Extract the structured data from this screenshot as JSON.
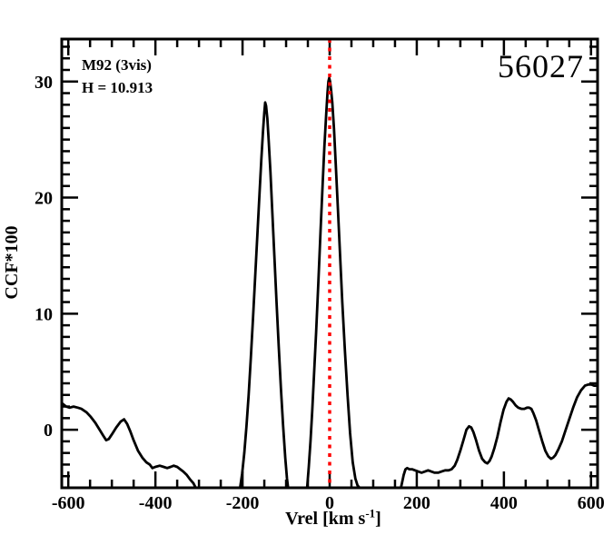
{
  "annotations": {
    "cluster": "M92 (3vis)",
    "magnitude": "H = 10.913",
    "star_id": "56027"
  },
  "colors": {
    "background": "#ffffff",
    "frame": "#000000",
    "curve": "#000000",
    "ref_line": "#ff0000"
  },
  "chart_data": {
    "type": "line",
    "title": "",
    "xlabel": "Vrel [km s-1]",
    "xlabel_parts": {
      "main": "Vrel [km s",
      "sup": "-1",
      "end": "]"
    },
    "ylabel": "CCF*100",
    "xlim": [
      -615,
      615
    ],
    "ylim": [
      -5,
      33.66
    ],
    "grid": false,
    "legend_position": "none",
    "x_major_ticks": [
      -600,
      -400,
      -200,
      0,
      200,
      400,
      600
    ],
    "x_tick_labels": [
      "-600",
      "-400",
      "-200",
      "0",
      "200",
      "400",
      "600"
    ],
    "x_minor_step": 50,
    "y_major_ticks": [
      0,
      10,
      20,
      30
    ],
    "y_tick_labels": [
      "0",
      "10",
      "20",
      "30"
    ],
    "y_minor_step": 1,
    "ref_line": {
      "x": 0,
      "style": "dotted",
      "color": "#ff0000"
    },
    "series": [
      {
        "name": "CCF",
        "color": "#000000",
        "segments": [
          [
            [
              -615,
              2.3
            ],
            [
              -605,
              2.0
            ],
            [
              -597,
              1.9
            ],
            [
              -588,
              2.0
            ],
            [
              -578,
              1.9
            ],
            [
              -570,
              1.8
            ],
            [
              -558,
              1.5
            ],
            [
              -548,
              1.1
            ],
            [
              -538,
              0.6
            ],
            [
              -528,
              0.0
            ],
            [
              -520,
              -0.5
            ],
            [
              -513,
              -0.9
            ],
            [
              -507,
              -0.8
            ],
            [
              -500,
              -0.4
            ],
            [
              -490,
              0.2
            ],
            [
              -480,
              0.7
            ],
            [
              -472,
              0.9
            ],
            [
              -465,
              0.5
            ],
            [
              -458,
              -0.1
            ],
            [
              -450,
              -0.9
            ],
            [
              -440,
              -1.8
            ],
            [
              -430,
              -2.4
            ],
            [
              -421,
              -2.8
            ],
            [
              -413,
              -3.0
            ],
            [
              -407,
              -3.3
            ],
            [
              -400,
              -3.2
            ],
            [
              -390,
              -3.1
            ],
            [
              -381,
              -3.2
            ],
            [
              -373,
              -3.3
            ],
            [
              -365,
              -3.2
            ],
            [
              -358,
              -3.1
            ],
            [
              -350,
              -3.2
            ],
            [
              -343,
              -3.4
            ],
            [
              -336,
              -3.6
            ],
            [
              -328,
              -3.9
            ],
            [
              -320,
              -4.3
            ],
            [
              -313,
              -4.6
            ],
            [
              -306,
              -5.1
            ]
          ],
          [
            [
              -206,
              -5.1
            ],
            [
              -201,
              -3.8
            ],
            [
              -196,
              -2.0
            ],
            [
              -191,
              0.3
            ],
            [
              -186,
              3.0
            ],
            [
              -181,
              6.2
            ],
            [
              -176,
              9.6
            ],
            [
              -171,
              13.2
            ],
            [
              -166,
              16.8
            ],
            [
              -161,
              20.4
            ],
            [
              -157,
              23.2
            ],
            [
              -153,
              25.7
            ],
            [
              -150,
              27.3
            ],
            [
              -148,
              28.2
            ],
            [
              -146,
              27.9
            ],
            [
              -143,
              26.8
            ],
            [
              -140,
              25.0
            ],
            [
              -136,
              22.2
            ],
            [
              -132,
              19.0
            ],
            [
              -127,
              15.0
            ],
            [
              -122,
              11.0
            ],
            [
              -117,
              7.2
            ],
            [
              -112,
              3.6
            ],
            [
              -107,
              0.4
            ],
            [
              -102,
              -2.4
            ],
            [
              -98,
              -4.2
            ],
            [
              -95,
              -5.1
            ]
          ],
          [
            [
              -52,
              -5.1
            ],
            [
              -48,
              -3.2
            ],
            [
              -44,
              -1.0
            ],
            [
              -40,
              1.6
            ],
            [
              -36,
              4.6
            ],
            [
              -31,
              8.4
            ],
            [
              -26,
              12.6
            ],
            [
              -21,
              17.0
            ],
            [
              -16,
              21.2
            ],
            [
              -12,
              24.4
            ],
            [
              -8,
              27.2
            ],
            [
              -5,
              29.0
            ],
            [
              -3,
              30.0
            ],
            [
              -1,
              30.3
            ],
            [
              1,
              30.0
            ],
            [
              3,
              29.4
            ],
            [
              6,
              28.2
            ],
            [
              10,
              25.9
            ],
            [
              14,
              22.9
            ],
            [
              19,
              19.0
            ],
            [
              24,
              15.0
            ],
            [
              29,
              11.0
            ],
            [
              35,
              6.8
            ],
            [
              41,
              3.0
            ],
            [
              47,
              -0.3
            ],
            [
              53,
              -2.8
            ],
            [
              59,
              -4.2
            ],
            [
              64,
              -4.8
            ],
            [
              71,
              -5.1
            ]
          ],
          [
            [
              163,
              -5.1
            ],
            [
              166,
              -4.6
            ],
            [
              170,
              -3.9
            ],
            [
              174,
              -3.4
            ],
            [
              178,
              -3.3
            ],
            [
              183,
              -3.4
            ],
            [
              189,
              -3.4
            ],
            [
              196,
              -3.5
            ],
            [
              203,
              -3.6
            ],
            [
              211,
              -3.7
            ],
            [
              219,
              -3.6
            ],
            [
              226,
              -3.5
            ],
            [
              233,
              -3.6
            ],
            [
              241,
              -3.7
            ],
            [
              249,
              -3.7
            ],
            [
              257,
              -3.6
            ],
            [
              265,
              -3.5
            ],
            [
              273,
              -3.5
            ],
            [
              280,
              -3.4
            ],
            [
              287,
              -3.1
            ],
            [
              293,
              -2.6
            ],
            [
              300,
              -1.8
            ],
            [
              307,
              -0.9
            ],
            [
              314,
              0.0
            ],
            [
              320,
              0.3
            ],
            [
              325,
              0.2
            ],
            [
              330,
              -0.2
            ],
            [
              336,
              -0.9
            ],
            [
              343,
              -1.8
            ],
            [
              350,
              -2.5
            ],
            [
              357,
              -2.8
            ],
            [
              362,
              -2.9
            ],
            [
              367,
              -2.7
            ],
            [
              372,
              -2.3
            ],
            [
              378,
              -1.6
            ],
            [
              385,
              -0.6
            ],
            [
              392,
              0.6
            ],
            [
              399,
              1.7
            ],
            [
              406,
              2.4
            ],
            [
              411,
              2.7
            ],
            [
              416,
              2.6
            ],
            [
              421,
              2.4
            ],
            [
              427,
              2.1
            ],
            [
              433,
              1.9
            ],
            [
              440,
              1.8
            ],
            [
              447,
              1.8
            ],
            [
              453,
              1.9
            ],
            [
              458,
              1.9
            ],
            [
              463,
              1.8
            ],
            [
              468,
              1.4
            ],
            [
              474,
              0.8
            ],
            [
              481,
              -0.1
            ],
            [
              488,
              -1.0
            ],
            [
              495,
              -1.8
            ],
            [
              502,
              -2.3
            ],
            [
              508,
              -2.5
            ],
            [
              513,
              -2.4
            ],
            [
              518,
              -2.2
            ],
            [
              525,
              -1.7
            ],
            [
              533,
              -1.0
            ],
            [
              541,
              -0.1
            ],
            [
              550,
              0.9
            ],
            [
              559,
              1.9
            ],
            [
              568,
              2.8
            ],
            [
              577,
              3.4
            ],
            [
              586,
              3.8
            ],
            [
              594,
              3.9
            ],
            [
              601,
              3.9
            ],
            [
              607,
              3.8
            ],
            [
              612,
              3.8
            ],
            [
              615,
              3.8
            ]
          ]
        ]
      }
    ]
  }
}
